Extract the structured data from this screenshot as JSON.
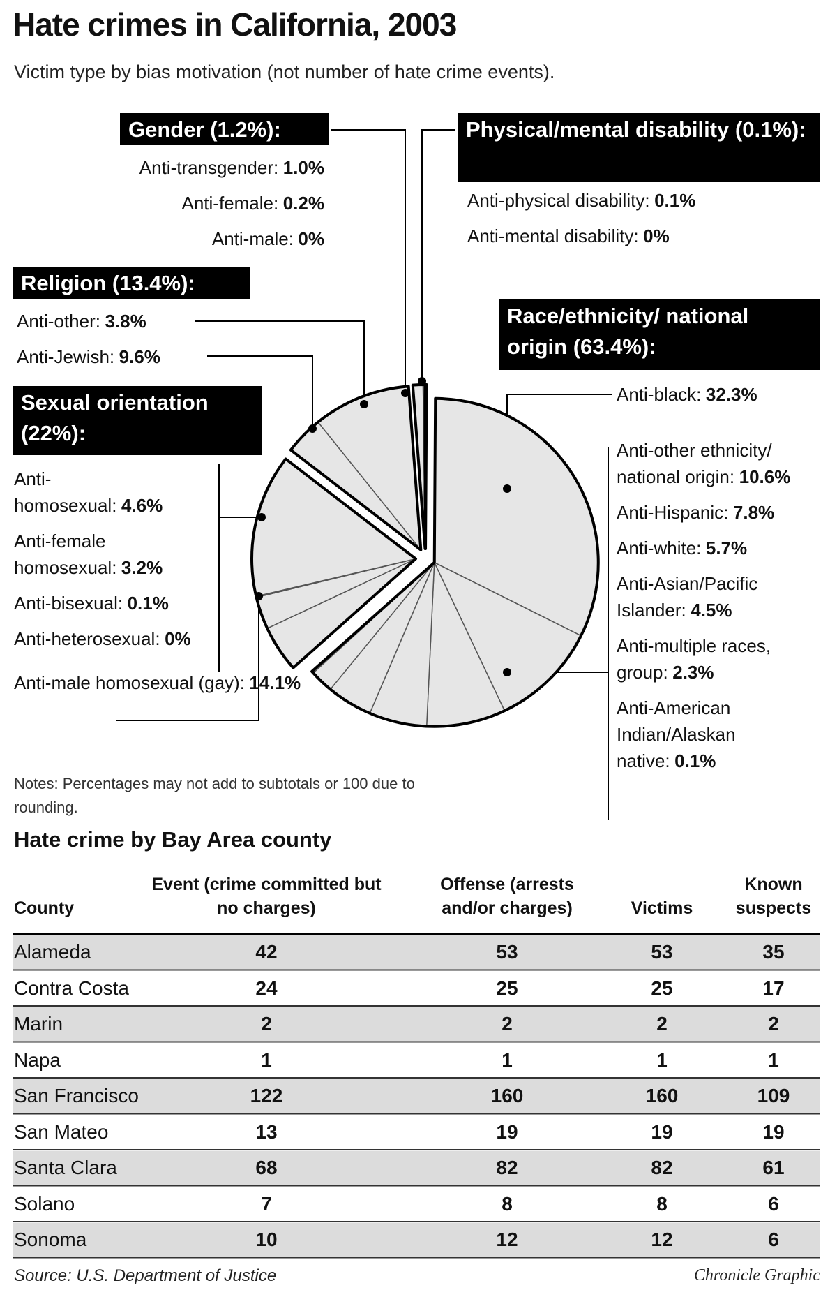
{
  "title": "Hate crimes in California, 2003",
  "subtitle": "Victim type by bias motivation (not number of hate crime events).",
  "chart_data": {
    "type": "pie",
    "color": "#e6e6e6",
    "groups": [
      {
        "label": "Physical/mental disability (0.1%):",
        "value": 0.1,
        "items": [
          {
            "name": "Anti-physical disability:",
            "value": 0.1,
            "value_label": "0.1%"
          },
          {
            "name": "Anti-mental disability:",
            "value": 0,
            "value_label": "0%"
          }
        ]
      },
      {
        "label": "Race/ethnicity/ national origin (63.4%):",
        "value": 63.4,
        "items": [
          {
            "name": "Anti-black:",
            "value": 32.3,
            "value_label": "32.3%"
          },
          {
            "name": "Anti-other ethnicity/ national origin:",
            "value": 10.6,
            "value_label": "10.6%"
          },
          {
            "name": "Anti-Hispanic:",
            "value": 7.8,
            "value_label": "7.8%"
          },
          {
            "name": "Anti-white:",
            "value": 5.7,
            "value_label": "5.7%"
          },
          {
            "name": "Anti-Asian/Pacific Islander:",
            "value": 4.5,
            "value_label": "4.5%"
          },
          {
            "name": "Anti-multiple races, group:",
            "value": 2.3,
            "value_label": "2.3%"
          },
          {
            "name": "Anti-American Indian/Alaskan native:",
            "value": 0.1,
            "value_label": "0.1%"
          }
        ]
      },
      {
        "label": "Sexual orientation (22%):",
        "value": 22,
        "items": [
          {
            "name": "Anti-homosexual:",
            "value": 4.6,
            "value_label": "4.6%"
          },
          {
            "name": "Anti-female homosexual:",
            "value": 3.2,
            "value_label": "3.2%"
          },
          {
            "name": "Anti-bisexual:",
            "value": 0.1,
            "value_label": "0.1%"
          },
          {
            "name": "Anti-heterosexual:",
            "value": 0,
            "value_label": "0%"
          },
          {
            "name": "Anti-male homosexual (gay):",
            "value": 14.1,
            "value_label": "14.1%"
          }
        ]
      },
      {
        "label": "Religion (13.4%):",
        "value": 13.4,
        "items": [
          {
            "name": "Anti-other:",
            "value": 3.8,
            "value_label": "3.8%"
          },
          {
            "name": "Anti-Jewish:",
            "value": 9.6,
            "value_label": "9.6%"
          }
        ]
      },
      {
        "label": "Gender (1.2%):",
        "value": 1.2,
        "items": [
          {
            "name": "Anti-transgender:",
            "value": 1.0,
            "value_label": "1.0%"
          },
          {
            "name": "Anti-female:",
            "value": 0.2,
            "value_label": "0.2%"
          },
          {
            "name": "Anti-male:",
            "value": 0,
            "value_label": "0%"
          }
        ]
      }
    ]
  },
  "notes": "Notes: Percentages may not add to subtotals or 100 due to rounding.",
  "table": {
    "title": "Hate crime by Bay Area county",
    "columns": [
      "County",
      "Event (crime committed but no charges)",
      "Offense (arrests and/or charges)",
      "Victims",
      "Known suspects"
    ],
    "rows": [
      [
        "Alameda",
        42,
        53,
        53,
        35
      ],
      [
        "Contra Costa",
        24,
        25,
        25,
        17
      ],
      [
        "Marin",
        2,
        2,
        2,
        2
      ],
      [
        "Napa",
        1,
        1,
        1,
        1
      ],
      [
        "San Francisco",
        122,
        160,
        160,
        109
      ],
      [
        "San Mateo",
        13,
        19,
        19,
        19
      ],
      [
        "Santa Clara",
        68,
        82,
        82,
        61
      ],
      [
        "Solano",
        7,
        8,
        8,
        6
      ],
      [
        "Sonoma",
        10,
        12,
        12,
        6
      ]
    ]
  },
  "source": "Source: U.S. Department of Justice",
  "credit": "Chronicle Graphic"
}
